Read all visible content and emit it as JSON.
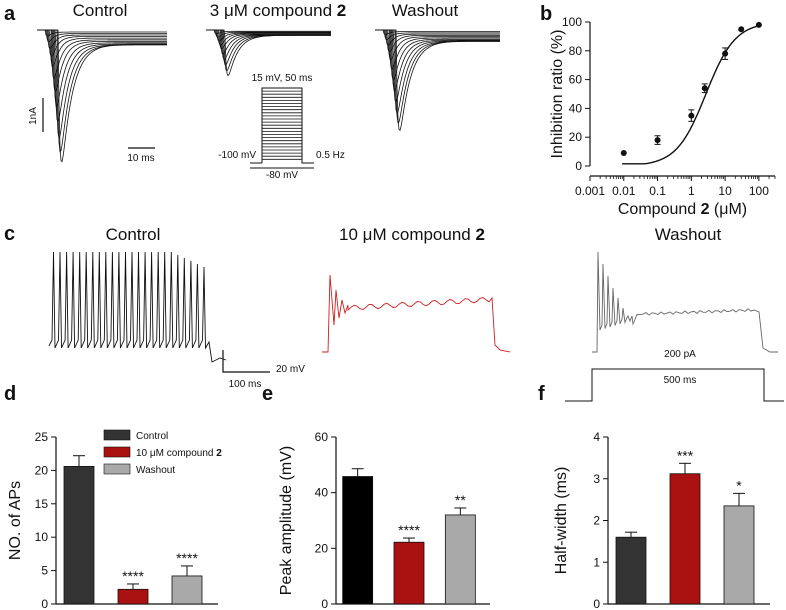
{
  "panel_labels": {
    "a": "a",
    "b": "b",
    "c": "c",
    "d": "d",
    "e": "e",
    "f": "f"
  },
  "panel_a": {
    "titles": [
      "Control",
      "3 μM compound ",
      "Washout"
    ],
    "compound_number": "2",
    "scale_current": "1nA",
    "scale_time": "10 ms",
    "protocol": {
      "top": "15 mV, 50 ms",
      "left": "-100 mV",
      "right": "0.5 Hz",
      "bottom": "-80 mV"
    }
  },
  "panel_c": {
    "titles": [
      "Control",
      "10 μM compound ",
      "Washout"
    ],
    "compound_number": "2",
    "scale_voltage": "20 mV",
    "scale_time": "100 ms",
    "stim_amp": "200 pA",
    "stim_dur": "500 ms",
    "trace_colors": [
      "#111111",
      "#cc1f1f",
      "#666666"
    ]
  },
  "chart_data": [
    {
      "panel": "b",
      "type": "scatter",
      "xscale": "log",
      "x": [
        0.01,
        0.1,
        1,
        2.5,
        10,
        30,
        100
      ],
      "y": [
        9,
        18,
        35,
        54,
        78,
        95,
        98
      ],
      "err": [
        0,
        3,
        4,
        3,
        4,
        0,
        0
      ],
      "fit": {
        "model": "hill",
        "ic50": 2.7,
        "hill": 1.0
      },
      "xlabel_prefix": "Compound ",
      "xlabel_bold": "2",
      "xlabel_suffix": " (μM)",
      "ylabel": "Inhibition ratio (%)",
      "xticks": [
        "0.001",
        "0.01",
        "0.1",
        "1",
        "10",
        "100"
      ],
      "xtick_values": [
        0.001,
        0.01,
        0.1,
        1,
        10,
        100
      ],
      "yticks": [
        "0",
        "20",
        "40",
        "60",
        "80",
        "100"
      ],
      "xlim": [
        0.001,
        300
      ],
      "ylim": [
        0,
        100
      ]
    },
    {
      "panel": "d",
      "type": "bar",
      "categories": [
        "Control",
        "10 μM compound 2",
        "Washout"
      ],
      "values": [
        20.6,
        2.2,
        4.2
      ],
      "errors": [
        1.6,
        0.8,
        1.5
      ],
      "colors": [
        "#333333",
        "#aa1111",
        "#a9a9a9"
      ],
      "sig": [
        "",
        "****",
        "****"
      ],
      "ylabel": "NO. of APs",
      "ylim": [
        0,
        25
      ],
      "yticks": [
        "0",
        "5",
        "10",
        "15",
        "20",
        "25"
      ],
      "legend": [
        {
          "label": "Control",
          "color": "#333333"
        },
        {
          "label": "10 μM compound ",
          "bold": "2",
          "color": "#aa1111"
        },
        {
          "label": "Washout",
          "color": "#a9a9a9"
        }
      ]
    },
    {
      "panel": "e",
      "type": "bar",
      "categories": [
        "Control",
        "10 μM compound 2",
        "Washout"
      ],
      "values": [
        45.8,
        22.2,
        32.0
      ],
      "errors": [
        2.8,
        1.5,
        2.5
      ],
      "colors": [
        "#000000",
        "#aa1111",
        "#a9a9a9"
      ],
      "sig": [
        "",
        "****",
        "**"
      ],
      "ylabel": "Peak amplitude (mV)",
      "ylim": [
        0,
        60
      ],
      "yticks": [
        "0",
        "20",
        "40",
        "60"
      ]
    },
    {
      "panel": "f",
      "type": "bar",
      "categories": [
        "Control",
        "10 μM compound 2",
        "Washout"
      ],
      "values": [
        1.6,
        3.12,
        2.35
      ],
      "errors": [
        0.12,
        0.25,
        0.3
      ],
      "colors": [
        "#333333",
        "#aa1111",
        "#a9a9a9"
      ],
      "sig": [
        "",
        "***",
        "*"
      ],
      "ylabel": "Half-width (ms)",
      "ylim": [
        0,
        4
      ],
      "yticks": [
        "0",
        "1",
        "2",
        "3",
        "4"
      ]
    }
  ]
}
